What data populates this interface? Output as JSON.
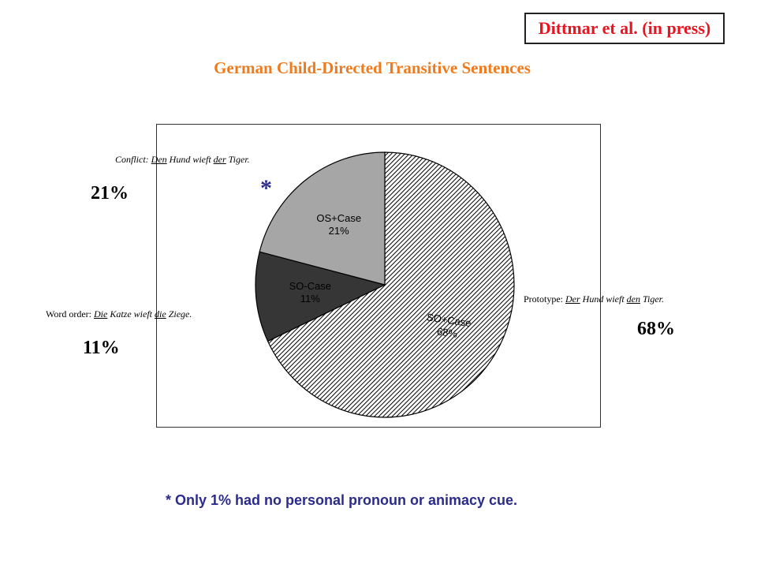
{
  "citation": "Dittmar et al. (in press)",
  "title": "German Child-Directed Transitive Sentences",
  "chart_data": {
    "type": "pie",
    "slices": [
      {
        "label": "SO+Case",
        "value": 68,
        "pct_label": "68%"
      },
      {
        "label": "SO-Case",
        "value": 11,
        "pct_label": "11%"
      },
      {
        "label": "OS+Case",
        "value": 21,
        "pct_label": "21%"
      }
    ]
  },
  "annotations": {
    "conflict": {
      "prefix": "Conflict: ",
      "w1": "Den",
      "m1": " Hund wieft ",
      "w2": "der",
      "m2": " Tiger.",
      "pct": "21%"
    },
    "prototype": {
      "prefix": "Prototype: ",
      "w1": "Der",
      "m1": " Hund wieft ",
      "w2": "den",
      "m2": " Tiger.",
      "pct": "68%"
    },
    "word_order": {
      "prefix": "Word order: ",
      "w1": "Die",
      "m1": " Katze wieft ",
      "w2": "die",
      "m2": " Ziege.",
      "pct": "11%"
    },
    "star": "*"
  },
  "footnote": "* Only 1% had no personal pronoun or animacy cue.",
  "colors": {
    "hatch": "#000000",
    "so_case": "#363636",
    "os_case": "#a6a6a6",
    "title": "#f07b1e",
    "citation": "#e8141f",
    "footnote": "#2b2b8c"
  }
}
